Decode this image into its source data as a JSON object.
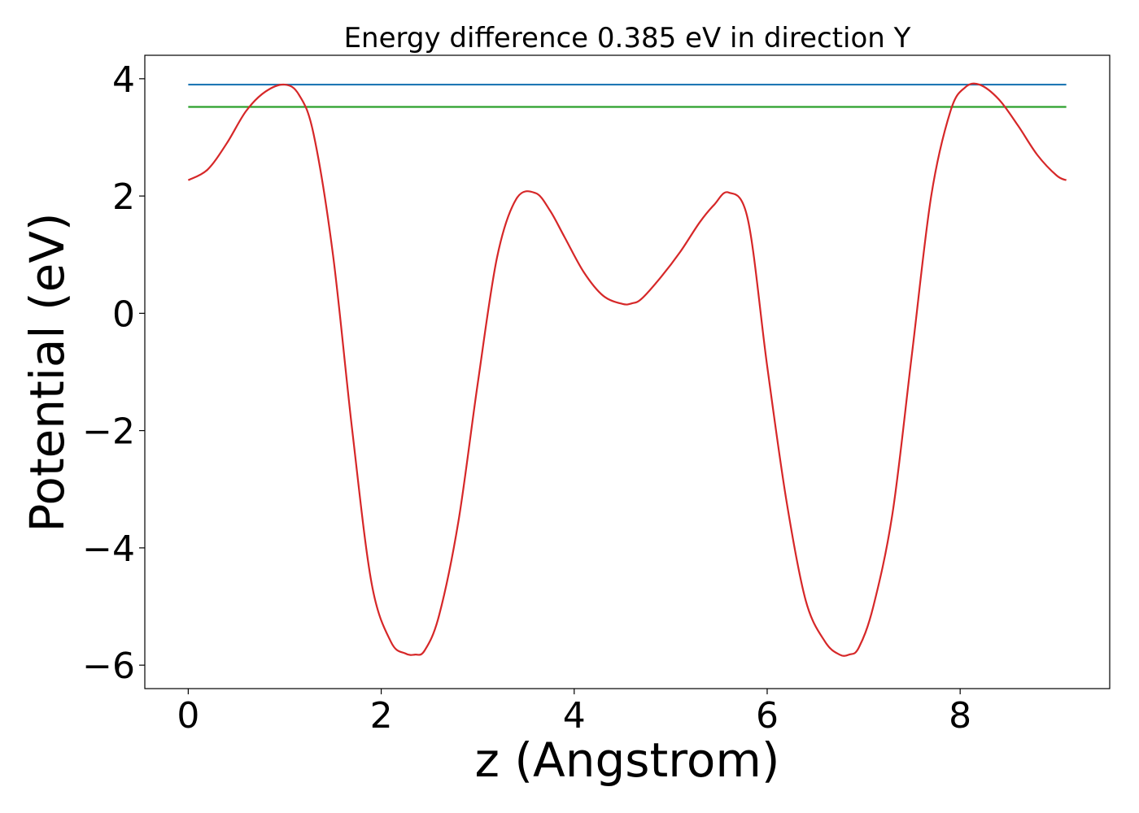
{
  "chart_data": {
    "type": "line",
    "title": "Energy difference 0.385 eV in direction Y",
    "xlabel": "z (Angstrom)",
    "ylabel": "Potential (eV)",
    "xlim": [
      -0.45,
      9.55
    ],
    "ylim": [
      -6.4,
      4.4
    ],
    "xticks": [
      0,
      2,
      4,
      6,
      8
    ],
    "yticks": [
      -6,
      -4,
      -2,
      0,
      2,
      4
    ],
    "grid": false,
    "series": [
      {
        "color": "#1f77b4",
        "x": [
          0,
          9.1
        ],
        "y": [
          3.9,
          3.9
        ]
      },
      {
        "color": "#2ca02c",
        "x": [
          0,
          9.1
        ],
        "y": [
          3.52,
          3.52
        ]
      },
      {
        "color": "#d62728",
        "x": [
          0.0,
          0.2,
          0.4,
          0.6,
          0.8,
          1.0,
          1.15,
          1.3,
          1.5,
          1.7,
          1.9,
          2.1,
          2.25,
          2.35,
          2.45,
          2.6,
          2.8,
          3.0,
          3.2,
          3.4,
          3.6,
          3.75,
          3.9,
          4.1,
          4.3,
          4.5,
          4.6,
          4.7,
          4.9,
          5.1,
          5.3,
          5.45,
          5.6,
          5.8,
          6.0,
          6.2,
          6.4,
          6.6,
          6.75,
          6.85,
          6.95,
          7.1,
          7.3,
          7.5,
          7.7,
          7.9,
          8.05,
          8.2,
          8.4,
          8.6,
          8.8,
          9.0,
          9.1
        ],
        "y": [
          2.27,
          2.45,
          2.9,
          3.45,
          3.78,
          3.9,
          3.72,
          3.05,
          1.0,
          -2.0,
          -4.6,
          -5.6,
          -5.8,
          -5.82,
          -5.75,
          -5.15,
          -3.55,
          -1.2,
          0.95,
          1.95,
          2.05,
          1.75,
          1.3,
          0.7,
          0.3,
          0.16,
          0.17,
          0.25,
          0.62,
          1.05,
          1.55,
          1.85,
          2.06,
          1.6,
          -0.9,
          -3.2,
          -4.9,
          -5.6,
          -5.82,
          -5.82,
          -5.7,
          -5.0,
          -3.4,
          -0.7,
          2.0,
          3.45,
          3.85,
          3.9,
          3.65,
          3.2,
          2.7,
          2.35,
          2.27
        ]
      }
    ]
  }
}
